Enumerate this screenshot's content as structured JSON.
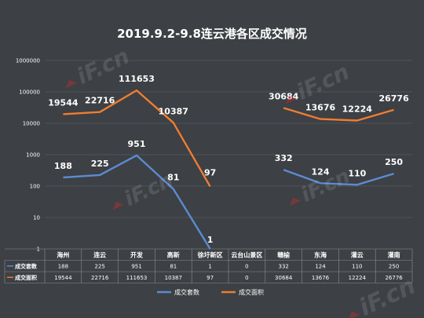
{
  "colors": {
    "background": "#3d4044",
    "series_sets": "#5b8bd0",
    "series_area": "#ee7d31",
    "grid": "#55595e",
    "watermark": "#e8eaec"
  },
  "chart_data": {
    "type": "line",
    "title": "2019.9.2-9.8连云港各区成交情况",
    "y_scale": "log",
    "ylim": [
      1,
      1000000
    ],
    "y_ticks": [
      "1",
      "10",
      "100",
      "1000",
      "10000",
      "100000",
      "1000000"
    ],
    "categories": [
      "海州",
      "连云",
      "开发",
      "高新",
      "徐圩新区",
      "云台山景区",
      "赣榆",
      "东海",
      "灌云",
      "灌南"
    ],
    "series": [
      {
        "name": "成交套数",
        "color": "#5b8bd0",
        "values": [
          188,
          225,
          951,
          81,
          1,
          0,
          332,
          124,
          110,
          250
        ],
        "labels": [
          "188",
          "225",
          "951",
          "81",
          "1",
          "0",
          "332",
          "124",
          "110",
          "250"
        ]
      },
      {
        "name": "成交面积",
        "color": "#ee7d31",
        "values": [
          19544,
          22716,
          111653,
          10387,
          97,
          0,
          30684,
          13676,
          12224,
          26776
        ],
        "labels": [
          "19544",
          "22716",
          "111653",
          "10387",
          "97",
          "0",
          "30684",
          "13676",
          "12224",
          "26776"
        ]
      }
    ],
    "grid": true,
    "legend_position": "bottom-center",
    "table": {
      "rows": [
        {
          "header": "成交套数",
          "values": [
            "188",
            "225",
            "951",
            "81",
            "1",
            "0",
            "332",
            "124",
            "110",
            "250"
          ]
        },
        {
          "header": "成交面积",
          "values": [
            "19544",
            "22716",
            "111653",
            "10387",
            "97",
            "0",
            "30684",
            "13676",
            "12224",
            "26776"
          ]
        }
      ]
    }
  },
  "watermark": {
    "text": "iF.cn",
    "icon": "house-logo-watermark"
  }
}
